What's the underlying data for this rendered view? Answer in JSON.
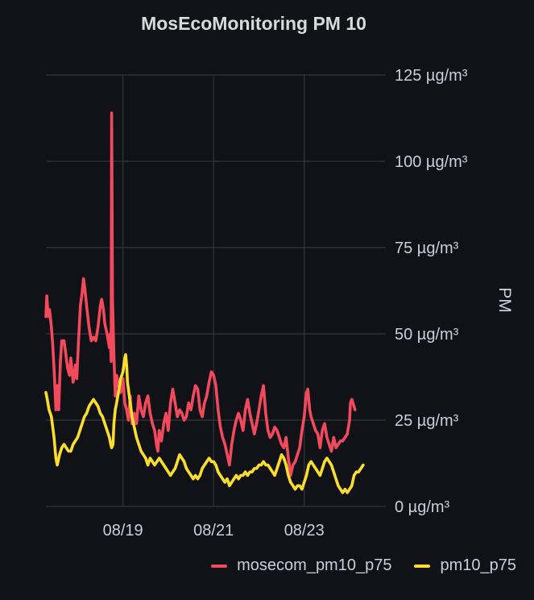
{
  "chart_data": {
    "type": "line",
    "title": "MosEcoMonitoring PM 10",
    "ylabel": "PM",
    "y_unit": "µg/m³",
    "ylim": [
      0,
      125
    ],
    "yticks": [
      "0 µg/m³",
      "25 µg/m³",
      "50 µg/m³",
      "75 µg/m³",
      "100 µg/m³",
      "125 µg/m³"
    ],
    "xlim": [
      17.3,
      24.8
    ],
    "xticks": [
      {
        "day": 19,
        "label": "08/19"
      },
      {
        "day": 21,
        "label": "08/21"
      },
      {
        "day": 23,
        "label": "08/23"
      }
    ],
    "grid": true,
    "legend_position": "bottom-right",
    "series": [
      {
        "name": "mosecom_pm10_p75",
        "color": "#f2495c",
        "points": [
          [
            17.3,
            55
          ],
          [
            17.32,
            61
          ],
          [
            17.35,
            55
          ],
          [
            17.38,
            57
          ],
          [
            17.42,
            52
          ],
          [
            17.45,
            47
          ],
          [
            17.48,
            40
          ],
          [
            17.5,
            34
          ],
          [
            17.52,
            28
          ],
          [
            17.55,
            35
          ],
          [
            17.58,
            28
          ],
          [
            17.62,
            42
          ],
          [
            17.65,
            48
          ],
          [
            17.7,
            48
          ],
          [
            17.73,
            45
          ],
          [
            17.78,
            40
          ],
          [
            17.82,
            38
          ],
          [
            17.85,
            43
          ],
          [
            17.9,
            36
          ],
          [
            17.95,
            41
          ],
          [
            17.98,
            37
          ],
          [
            18.02,
            48
          ],
          [
            18.06,
            58
          ],
          [
            18.1,
            62
          ],
          [
            18.13,
            66
          ],
          [
            18.16,
            63
          ],
          [
            18.2,
            58
          ],
          [
            18.25,
            52
          ],
          [
            18.3,
            48
          ],
          [
            18.35,
            49
          ],
          [
            18.4,
            48
          ],
          [
            18.45,
            52
          ],
          [
            18.5,
            58
          ],
          [
            18.53,
            60
          ],
          [
            18.57,
            57
          ],
          [
            18.6,
            53
          ],
          [
            18.65,
            50
          ],
          [
            18.7,
            46
          ],
          [
            18.72,
            50
          ],
          [
            18.74,
            42
          ],
          [
            18.75,
            114
          ],
          [
            18.77,
            60
          ],
          [
            18.8,
            44
          ],
          [
            18.83,
            32
          ],
          [
            18.86,
            38
          ],
          [
            18.9,
            35
          ],
          [
            18.95,
            33
          ],
          [
            19.0,
            37
          ],
          [
            19.04,
            30
          ],
          [
            19.08,
            28
          ],
          [
            19.12,
            25
          ],
          [
            19.16,
            32
          ],
          [
            19.2,
            24
          ],
          [
            19.25,
            27
          ],
          [
            19.3,
            24
          ],
          [
            19.35,
            32
          ],
          [
            19.4,
            28
          ],
          [
            19.45,
            26
          ],
          [
            19.5,
            30
          ],
          [
            19.55,
            32
          ],
          [
            19.6,
            27
          ],
          [
            19.65,
            24
          ],
          [
            19.7,
            22
          ],
          [
            19.74,
            18
          ],
          [
            19.77,
            16
          ],
          [
            19.8,
            22
          ],
          [
            19.85,
            19
          ],
          [
            19.9,
            24
          ],
          [
            19.95,
            27
          ],
          [
            20.0,
            22
          ],
          [
            20.05,
            30
          ],
          [
            20.1,
            34
          ],
          [
            20.15,
            30
          ],
          [
            20.2,
            26
          ],
          [
            20.25,
            28
          ],
          [
            20.3,
            27
          ],
          [
            20.35,
            25
          ],
          [
            20.4,
            26
          ],
          [
            20.45,
            30
          ],
          [
            20.5,
            28
          ],
          [
            20.55,
            32
          ],
          [
            20.6,
            35
          ],
          [
            20.65,
            34
          ],
          [
            20.7,
            28
          ],
          [
            20.75,
            26
          ],
          [
            20.8,
            30
          ],
          [
            20.85,
            32
          ],
          [
            20.9,
            36
          ],
          [
            20.95,
            39
          ],
          [
            21.0,
            38
          ],
          [
            21.05,
            35
          ],
          [
            21.1,
            28
          ],
          [
            21.15,
            23
          ],
          [
            21.2,
            20
          ],
          [
            21.25,
            18
          ],
          [
            21.3,
            15
          ],
          [
            21.35,
            12
          ],
          [
            21.4,
            18
          ],
          [
            21.45,
            22
          ],
          [
            21.5,
            25
          ],
          [
            21.55,
            27
          ],
          [
            21.6,
            25
          ],
          [
            21.65,
            22
          ],
          [
            21.7,
            28
          ],
          [
            21.75,
            31
          ],
          [
            21.8,
            27
          ],
          [
            21.85,
            24
          ],
          [
            21.9,
            21
          ],
          [
            21.95,
            24
          ],
          [
            22.0,
            28
          ],
          [
            22.05,
            32
          ],
          [
            22.1,
            35
          ],
          [
            22.15,
            27
          ],
          [
            22.2,
            22
          ],
          [
            22.25,
            20
          ],
          [
            22.3,
            21
          ],
          [
            22.35,
            23
          ],
          [
            22.4,
            22
          ],
          [
            22.45,
            20
          ],
          [
            22.5,
            18
          ],
          [
            22.55,
            17
          ],
          [
            22.6,
            20
          ],
          [
            22.65,
            14
          ],
          [
            22.7,
            9
          ],
          [
            22.75,
            12
          ],
          [
            22.8,
            13
          ],
          [
            22.85,
            15
          ],
          [
            22.9,
            17
          ],
          [
            22.95,
            22
          ],
          [
            23.0,
            26
          ],
          [
            23.05,
            33
          ],
          [
            23.08,
            34
          ],
          [
            23.12,
            28
          ],
          [
            23.15,
            26
          ],
          [
            23.2,
            24
          ],
          [
            23.25,
            22
          ],
          [
            23.3,
            21
          ],
          [
            23.35,
            17
          ],
          [
            23.4,
            22
          ],
          [
            23.45,
            24
          ],
          [
            23.5,
            20
          ],
          [
            23.55,
            18
          ],
          [
            23.6,
            16
          ],
          [
            23.65,
            20
          ],
          [
            23.7,
            17
          ],
          [
            23.75,
            18
          ],
          [
            23.8,
            19
          ],
          [
            23.85,
            19
          ],
          [
            23.9,
            20
          ],
          [
            23.95,
            21
          ],
          [
            24.0,
            25
          ],
          [
            24.02,
            30
          ],
          [
            24.05,
            31
          ],
          [
            24.1,
            29
          ],
          [
            24.12,
            28
          ]
        ]
      },
      {
        "name": "pm10_p75",
        "color": "#fade2a",
        "points": [
          [
            17.3,
            33
          ],
          [
            17.33,
            31
          ],
          [
            17.37,
            28
          ],
          [
            17.42,
            26
          ],
          [
            17.48,
            20
          ],
          [
            17.52,
            14
          ],
          [
            17.55,
            12
          ],
          [
            17.6,
            15
          ],
          [
            17.65,
            17
          ],
          [
            17.7,
            18
          ],
          [
            17.75,
            17
          ],
          [
            17.8,
            16
          ],
          [
            17.85,
            16
          ],
          [
            17.9,
            18
          ],
          [
            17.95,
            19
          ],
          [
            18.0,
            20
          ],
          [
            18.05,
            22
          ],
          [
            18.1,
            24
          ],
          [
            18.15,
            26
          ],
          [
            18.2,
            27
          ],
          [
            18.25,
            29
          ],
          [
            18.3,
            30
          ],
          [
            18.35,
            31
          ],
          [
            18.4,
            30
          ],
          [
            18.45,
            29
          ],
          [
            18.5,
            27
          ],
          [
            18.55,
            26
          ],
          [
            18.6,
            24
          ],
          [
            18.65,
            22
          ],
          [
            18.7,
            20
          ],
          [
            18.73,
            18
          ],
          [
            18.75,
            17
          ],
          [
            18.78,
            18
          ],
          [
            18.8,
            24
          ],
          [
            18.83,
            28
          ],
          [
            18.86,
            30
          ],
          [
            18.9,
            33
          ],
          [
            18.95,
            37
          ],
          [
            19.0,
            39
          ],
          [
            19.04,
            43
          ],
          [
            19.06,
            44
          ],
          [
            19.08,
            41
          ],
          [
            19.1,
            36
          ],
          [
            19.15,
            31
          ],
          [
            19.2,
            26
          ],
          [
            19.25,
            23
          ],
          [
            19.3,
            20
          ],
          [
            19.35,
            18
          ],
          [
            19.4,
            16
          ],
          [
            19.45,
            15
          ],
          [
            19.5,
            14
          ],
          [
            19.55,
            12
          ],
          [
            19.6,
            14
          ],
          [
            19.65,
            13
          ],
          [
            19.7,
            12
          ],
          [
            19.75,
            13
          ],
          [
            19.8,
            14
          ],
          [
            19.85,
            13
          ],
          [
            19.9,
            12
          ],
          [
            19.95,
            11
          ],
          [
            20.0,
            10
          ],
          [
            20.05,
            9
          ],
          [
            20.1,
            10
          ],
          [
            20.15,
            11
          ],
          [
            20.2,
            13
          ],
          [
            20.25,
            15
          ],
          [
            20.3,
            14
          ],
          [
            20.35,
            13
          ],
          [
            20.4,
            11
          ],
          [
            20.45,
            10
          ],
          [
            20.5,
            9
          ],
          [
            20.55,
            8
          ],
          [
            20.6,
            9
          ],
          [
            20.65,
            8
          ],
          [
            20.7,
            9
          ],
          [
            20.75,
            11
          ],
          [
            20.8,
            12
          ],
          [
            20.85,
            13
          ],
          [
            20.9,
            14
          ],
          [
            20.95,
            13
          ],
          [
            21.0,
            13
          ],
          [
            21.05,
            12
          ],
          [
            21.1,
            10
          ],
          [
            21.15,
            9
          ],
          [
            21.2,
            8
          ],
          [
            21.25,
            7
          ],
          [
            21.3,
            8
          ],
          [
            21.35,
            6
          ],
          [
            21.4,
            7
          ],
          [
            21.45,
            8
          ],
          [
            21.5,
            9
          ],
          [
            21.55,
            8
          ],
          [
            21.6,
            9
          ],
          [
            21.65,
            9
          ],
          [
            21.7,
            10
          ],
          [
            21.75,
            9
          ],
          [
            21.8,
            10
          ],
          [
            21.85,
            10
          ],
          [
            21.9,
            11
          ],
          [
            21.95,
            11
          ],
          [
            22.0,
            12
          ],
          [
            22.05,
            12
          ],
          [
            22.1,
            13
          ],
          [
            22.15,
            12
          ],
          [
            22.2,
            12
          ],
          [
            22.25,
            11
          ],
          [
            22.3,
            10
          ],
          [
            22.35,
            9
          ],
          [
            22.4,
            11
          ],
          [
            22.45,
            13
          ],
          [
            22.5,
            15
          ],
          [
            22.55,
            14
          ],
          [
            22.6,
            12
          ],
          [
            22.65,
            9
          ],
          [
            22.7,
            7
          ],
          [
            22.75,
            6
          ],
          [
            22.8,
            5
          ],
          [
            22.85,
            6
          ],
          [
            22.9,
            6
          ],
          [
            22.95,
            5
          ],
          [
            23.0,
            7
          ],
          [
            23.05,
            9
          ],
          [
            23.1,
            12
          ],
          [
            23.15,
            13
          ],
          [
            23.2,
            12
          ],
          [
            23.25,
            11
          ],
          [
            23.3,
            10
          ],
          [
            23.35,
            9
          ],
          [
            23.4,
            11
          ],
          [
            23.45,
            13
          ],
          [
            23.5,
            14
          ],
          [
            23.55,
            13
          ],
          [
            23.6,
            12
          ],
          [
            23.65,
            10
          ],
          [
            23.7,
            8
          ],
          [
            23.75,
            6
          ],
          [
            23.8,
            5
          ],
          [
            23.85,
            4
          ],
          [
            23.9,
            5
          ],
          [
            23.95,
            4
          ],
          [
            24.0,
            5
          ],
          [
            24.05,
            6
          ],
          [
            24.1,
            9
          ],
          [
            24.15,
            10
          ],
          [
            24.2,
            10
          ],
          [
            24.25,
            11
          ],
          [
            24.3,
            12
          ]
        ]
      }
    ]
  }
}
